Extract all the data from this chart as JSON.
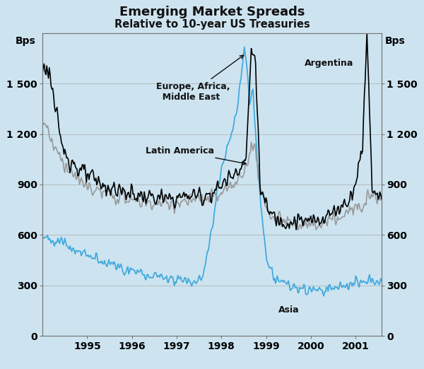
{
  "title": "Emerging Market Spreads",
  "subtitle": "Relative to 10-year US Treasuries",
  "ylabel_left": "Bps",
  "ylabel_right": "Bps",
  "background_color": "#cde4f0",
  "plot_background_color": "#cde4f0",
  "ylim": [
    0,
    1800
  ],
  "yticks": [
    0,
    300,
    600,
    900,
    1200,
    1500
  ],
  "ytick_labels": [
    "0",
    "300",
    "600",
    "900",
    "1 200",
    "1 500"
  ],
  "xlim": [
    1994.0,
    2001.58
  ],
  "xticks": [
    1995,
    1996,
    1997,
    1998,
    1999,
    2000,
    2001
  ],
  "series_colors": {
    "europe_africa": "#000000",
    "latin_america": "#999999",
    "asia": "#44aadd"
  },
  "linewidths": {
    "europe_africa": 1.2,
    "latin_america": 1.2,
    "asia": 1.3
  }
}
